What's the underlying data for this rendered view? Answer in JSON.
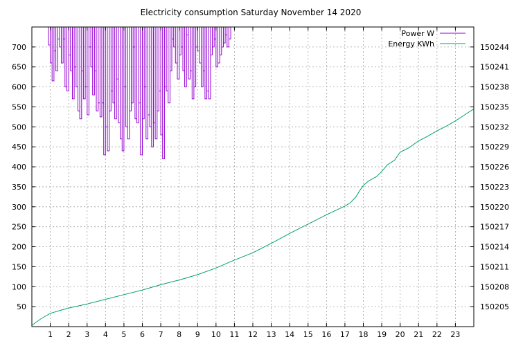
{
  "chart_data": {
    "type": "line",
    "title": "Electricity consumption Saturday November 14 2020",
    "xlabel": "",
    "ylabel_left": "",
    "ylabel_right": "",
    "xlim": [
      0,
      24
    ],
    "ylim_left": [
      0,
      750
    ],
    "ylim_right": [
      150202,
      150247
    ],
    "grid": true,
    "legend_position": "top-right",
    "x_ticks": [
      "1",
      "2",
      "3",
      "4",
      "5",
      "6",
      "7",
      "8",
      "9",
      "10",
      "11",
      "12",
      "13",
      "14",
      "15",
      "16",
      "17",
      "18",
      "19",
      "20",
      "21",
      "22",
      "23"
    ],
    "y_ticks_left": [
      "50",
      "100",
      "150",
      "200",
      "250",
      "300",
      "350",
      "400",
      "450",
      "500",
      "550",
      "600",
      "650",
      "700"
    ],
    "y_ticks_right": [
      "150205",
      "150208",
      "150211",
      "150214",
      "150217",
      "150220",
      "150223",
      "150226",
      "150229",
      "150232",
      "150235",
      "150238",
      "150241",
      "150244"
    ],
    "series": [
      {
        "name": "Power W",
        "axis": "left",
        "color": "#9400d3",
        "style": "steps",
        "x": [
          0.95,
          1.05,
          1.15,
          1.25,
          1.35,
          1.45,
          1.55,
          1.65,
          1.75,
          1.85,
          1.95,
          2.05,
          2.15,
          2.25,
          2.35,
          2.45,
          2.55,
          2.65,
          2.75,
          2.85,
          2.95,
          3.05,
          3.15,
          3.25,
          3.35,
          3.45,
          3.55,
          3.65,
          3.75,
          3.85,
          3.95,
          4.05,
          4.15,
          4.25,
          4.35,
          4.45,
          4.55,
          4.65,
          4.75,
          4.85,
          4.95,
          5.05,
          5.15,
          5.25,
          5.35,
          5.45,
          5.55,
          5.65,
          5.75,
          5.85,
          5.95,
          6.05,
          6.15,
          6.25,
          6.35,
          6.45,
          6.55,
          6.65,
          6.75,
          6.85,
          6.95,
          7.05,
          7.15,
          7.25,
          7.35,
          7.45,
          7.55,
          7.65,
          7.75,
          7.85,
          7.95,
          8.05,
          8.15,
          8.25,
          8.35,
          8.45,
          8.55,
          8.65,
          8.75,
          8.85,
          8.95,
          9.05,
          9.15,
          9.25,
          9.35,
          9.45,
          9.55,
          9.65,
          9.75,
          9.85,
          9.95,
          10.05,
          10.15,
          10.25,
          10.35,
          10.45,
          10.55,
          10.65,
          10.75
        ],
        "y": [
          705,
          660,
          615,
          690,
          640,
          720,
          700,
          660,
          720,
          600,
          590,
          680,
          640,
          570,
          650,
          600,
          540,
          520,
          640,
          570,
          600,
          530,
          700,
          650,
          580,
          640,
          540,
          560,
          525,
          560,
          430,
          500,
          440,
          540,
          590,
          560,
          520,
          620,
          510,
          470,
          440,
          600,
          500,
          470,
          540,
          560,
          700,
          520,
          510,
          560,
          430,
          520,
          600,
          470,
          530,
          500,
          450,
          510,
          470,
          540,
          590,
          480,
          420,
          600,
          590,
          560,
          640,
          720,
          700,
          660,
          620,
          680,
          700,
          640,
          600,
          730,
          620,
          640,
          570,
          600,
          700,
          690,
          660,
          600,
          640,
          570,
          590,
          570,
          680,
          700,
          720,
          650,
          660,
          680,
          700,
          710,
          730,
          700,
          720
        ]
      },
      {
        "name": "Energy KWh",
        "axis": "right",
        "color": "#009e73",
        "style": "line",
        "x": [
          0,
          0.5,
          1,
          1.5,
          2,
          3,
          4,
          5,
          6,
          7,
          8,
          9,
          10,
          11,
          12,
          13,
          14,
          15,
          16,
          17,
          17.3,
          17.6,
          17.8,
          18.0,
          18.3,
          18.7,
          19.0,
          19.3,
          19.7,
          20.0,
          20.5,
          21.0,
          21.5,
          22.0,
          22.5,
          23.0,
          23.5,
          24.0
        ],
        "y": [
          150202.2,
          150203.2,
          150204.0,
          150204.4,
          150204.8,
          150205.4,
          150206.1,
          150206.8,
          150207.5,
          150208.3,
          150209.0,
          150209.8,
          150210.8,
          150212.0,
          150213.1,
          150214.5,
          150216.0,
          150217.4,
          150218.8,
          150220.1,
          150220.6,
          150221.5,
          150222.4,
          150223.2,
          150223.9,
          150224.5,
          150225.3,
          150226.3,
          150227.0,
          150228.2,
          150228.9,
          150229.9,
          150230.6,
          150231.4,
          150232.1,
          150232.9,
          150233.8,
          150234.7
        ]
      }
    ]
  }
}
